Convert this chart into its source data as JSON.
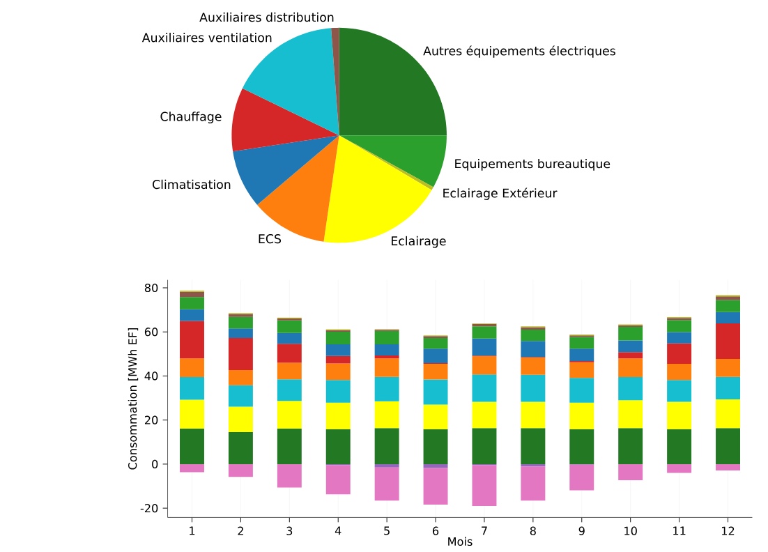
{
  "chart_data": [
    {
      "type": "pie",
      "categories": [
        "Autres équipements électriques",
        "Equipements bureautique",
        "Eclairage Extérieur",
        "Eclairage",
        "ECS",
        "Climatisation",
        "Chauffage",
        "Auxiliaires ventilation",
        "Auxiliaires distribution"
      ],
      "values": [
        25,
        8,
        0.5,
        18.8,
        11.5,
        8.8,
        9.6,
        16.6,
        1.2
      ],
      "colors": [
        "#237823",
        "#2ca02c",
        "#bcbd22",
        "#ffff00",
        "#ff7f0e",
        "#1f77b4",
        "#d62728",
        "#17becf",
        "#8c564b"
      ]
    },
    {
      "type": "bar",
      "stacked": true,
      "xlabel": "Mois",
      "ylabel": "Consommation [MWh EF]",
      "categories": [
        "1",
        "2",
        "3",
        "4",
        "5",
        "6",
        "7",
        "8",
        "9",
        "10",
        "11",
        "12"
      ],
      "series": [
        {
          "color": "#237823",
          "values": [
            16.1,
            14.6,
            16.1,
            15.9,
            16.3,
            15.9,
            16.3,
            16.3,
            15.9,
            16.3,
            15.9,
            16.3
          ]
        },
        {
          "color": "#ffff00",
          "values": [
            13.1,
            11.5,
            12.6,
            12.0,
            12.2,
            11.1,
            12.0,
            12.0,
            12.0,
            12.7,
            12.4,
            13.1
          ]
        },
        {
          "color": "#17becf",
          "values": [
            10.3,
            9.7,
            9.8,
            10.3,
            11.1,
            11.4,
            12.4,
            12.2,
            11.2,
            10.5,
            9.9,
            10.2
          ]
        },
        {
          "color": "#ff7f0e",
          "values": [
            8.5,
            6.9,
            7.5,
            7.5,
            8.4,
            7.1,
            8.3,
            7.9,
            7.1,
            8.5,
            7.3,
            8.1
          ]
        },
        {
          "color": "#d62728",
          "values": [
            17.0,
            14.5,
            8.6,
            3.4,
            1.3,
            0.3,
            0.2,
            0.2,
            0.6,
            2.8,
            9.3,
            16.2
          ]
        },
        {
          "color": "#1f77b4",
          "values": [
            5.3,
            4.4,
            4.9,
            5.3,
            5.1,
            6.6,
            7.8,
            7.3,
            5.6,
            5.3,
            5.1,
            5.1
          ]
        },
        {
          "color": "#2ca02c",
          "values": [
            5.5,
            5.2,
            5.7,
            5.7,
            6.1,
            4.8,
            5.5,
            5.1,
            5.3,
            6.2,
            5.5,
            5.5
          ]
        },
        {
          "color": "#8c564b",
          "values": [
            2.4,
            1.3,
            0.9,
            0.7,
            0.5,
            0.9,
            1.1,
            1.1,
            0.7,
            0.7,
            0.9,
            1.6
          ]
        },
        {
          "color": "#bcbd22",
          "values": [
            0.5,
            0.4,
            0.4,
            0.4,
            0.2,
            0.3,
            0.3,
            0.4,
            0.4,
            0.4,
            0.4,
            0.6
          ]
        },
        {
          "color": "#9467bd",
          "values": [
            0,
            0,
            0,
            -0.5,
            -1.5,
            -1.8,
            -0.5,
            -1.1,
            -0.3,
            0,
            0,
            0
          ]
        },
        {
          "color": "#e377c2",
          "values": [
            -3.7,
            -5.8,
            -10.6,
            -13.2,
            -15.1,
            -16.6,
            -18.5,
            -15.5,
            -11.6,
            -7.3,
            -4.0,
            -2.9
          ]
        }
      ],
      "ylim": [
        -24.2,
        83.6
      ],
      "yticks": [
        -20,
        0,
        20,
        40,
        60,
        80
      ],
      "grid": "x"
    }
  ]
}
